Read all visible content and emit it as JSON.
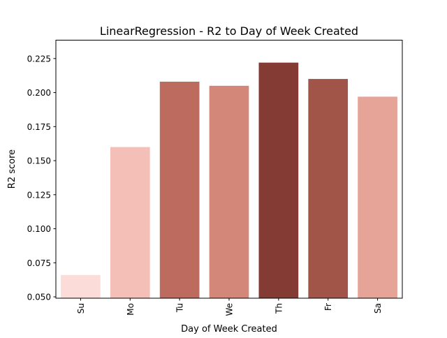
{
  "chart_data": {
    "type": "bar",
    "title": "LinearRegression - R2 to Day of Week Created",
    "xlabel": "Day of Week Created",
    "ylabel": "R2 score",
    "categories": [
      "Su",
      "Mo",
      "Tu",
      "We",
      "Th",
      "Fr",
      "Sa"
    ],
    "values": [
      0.066,
      0.16,
      0.208,
      0.205,
      0.222,
      0.21,
      0.197
    ],
    "ylim": [
      0.049,
      0.2385
    ],
    "yticks": [
      0.05,
      0.075,
      0.1,
      0.125,
      0.15,
      0.175,
      0.2,
      0.225
    ],
    "ytick_labels": [
      "0.050",
      "0.075",
      "0.100",
      "0.125",
      "0.150",
      "0.175",
      "0.200",
      "0.225"
    ],
    "colors": [
      "#fbdcd8",
      "#f4bfb6",
      "#bd6b5e",
      "#d38779",
      "#833b33",
      "#a15548",
      "#e6a398"
    ],
    "grid": false,
    "legend": "none"
  }
}
